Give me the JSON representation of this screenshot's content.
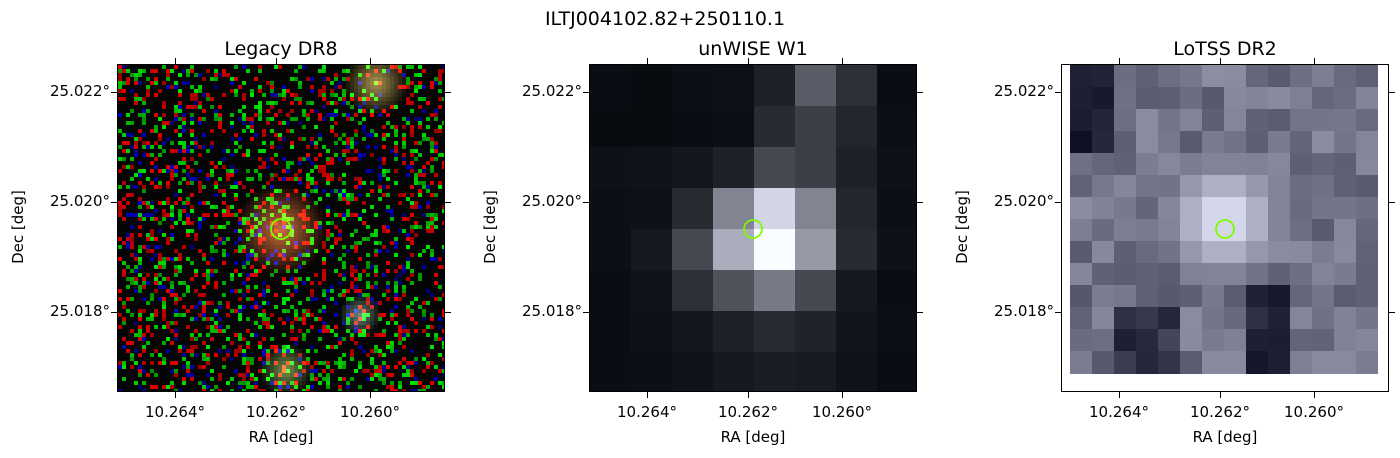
{
  "figure": {
    "title": "ILTJ004102.82+250110.1"
  },
  "panels": [
    {
      "title": "Legacy DR8",
      "xlabel": "RA [deg]",
      "ylabel": "Dec [deg]",
      "xticks": [
        "10.264°",
        "10.262°",
        "10.260°"
      ],
      "yticks": [
        "25.022°",
        "25.020°",
        "25.018°"
      ],
      "marker": "green-circle"
    },
    {
      "title": "unWISE W1",
      "xlabel": "RA [deg]",
      "ylabel": "Dec [deg]",
      "xticks": [
        "10.264°",
        "10.262°",
        "10.260°"
      ],
      "yticks": [
        "25.022°",
        "25.020°",
        "25.018°"
      ],
      "marker": "green-circle"
    },
    {
      "title": "LoTSS DR2",
      "xlabel": "RA [deg]",
      "ylabel": "Dec [deg]",
      "xticks": [
        "10.264°",
        "10.262°",
        "10.260°"
      ],
      "yticks": [
        "25.022°",
        "25.020°",
        "25.018°"
      ],
      "marker": "green-circle"
    }
  ],
  "colors": {
    "marker": "#7CFC00"
  }
}
